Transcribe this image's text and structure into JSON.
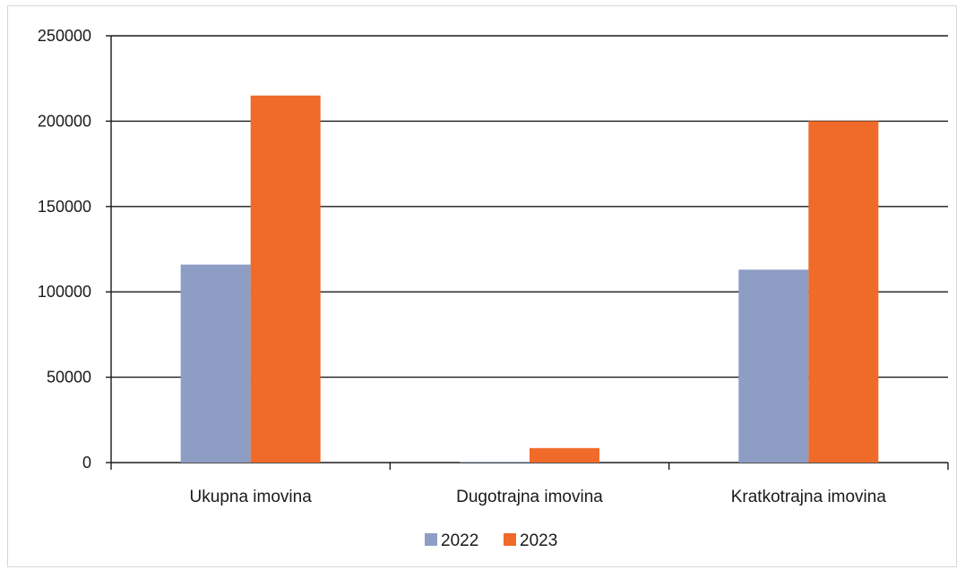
{
  "chart_data": {
    "type": "bar",
    "categories": [
      "Ukupna imovina",
      "Dugotrajna imovina",
      "Kratkotrajna imovina"
    ],
    "series": [
      {
        "name": "2022",
        "values": [
          116000,
          500,
          113000
        ],
        "color": "#8e9dc4"
      },
      {
        "name": "2023",
        "values": [
          215000,
          8500,
          200000
        ],
        "color": "#f06a2a"
      }
    ],
    "ylim": [
      0,
      250000
    ],
    "yticks": [
      "0",
      "50000",
      "100000",
      "150000",
      "200000",
      "250000"
    ],
    "grid": true,
    "legend_position": "bottom",
    "title": "",
    "xlabel": "",
    "ylabel": ""
  }
}
